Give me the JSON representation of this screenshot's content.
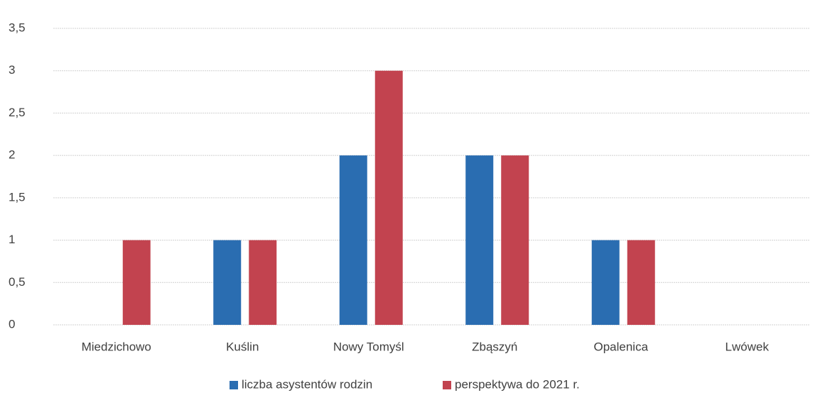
{
  "chart_data": {
    "type": "bar",
    "categories": [
      "Miedzichowo",
      "Kuślin",
      "Nowy Tomyśl",
      "Zbąszyń",
      "Opalenica",
      "Lwówek"
    ],
    "series": [
      {
        "name": "liczba asystentów rodzin",
        "color": "#2a6db1",
        "values": [
          0,
          1,
          2,
          2,
          1,
          0
        ]
      },
      {
        "name": "perspektywa do 2021 r.",
        "color": "#c2434f",
        "values": [
          1,
          1,
          3,
          2,
          1,
          0
        ]
      }
    ],
    "ylim": [
      0,
      3.5
    ],
    "yticks": [
      0,
      {
        "value": 0.5,
        "label": "0,5"
      },
      1,
      {
        "value": 1.5,
        "label": "1,5"
      },
      2,
      {
        "value": 2.5,
        "label": "2,5"
      },
      3,
      {
        "value": 3.5,
        "label": "3,5"
      }
    ],
    "grid": true,
    "legend": "bottom"
  }
}
